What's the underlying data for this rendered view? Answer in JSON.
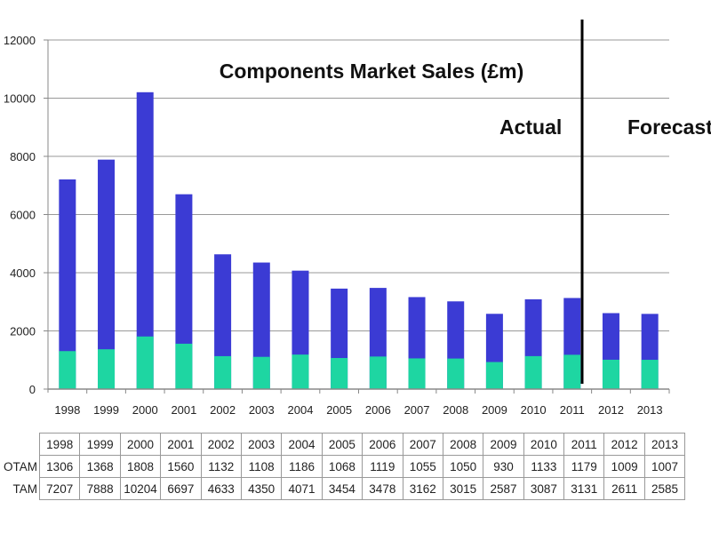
{
  "chart_data": {
    "type": "bar",
    "title": "Components Market Sales (£m)",
    "categories": [
      "1998",
      "1999",
      "2000",
      "2001",
      "2002",
      "2003",
      "2004",
      "2005",
      "2006",
      "2007",
      "2008",
      "2009",
      "2010",
      "2011",
      "2012",
      "2013"
    ],
    "series": [
      {
        "name": "TAM",
        "color": "#3b3bd4",
        "values": [
          7207,
          7888,
          10204,
          6697,
          4633,
          4350,
          4071,
          3454,
          3478,
          3162,
          3015,
          2587,
          3087,
          3131,
          2611,
          2585
        ]
      },
      {
        "name": "OTAM",
        "color": "#1ed6a2",
        "values": [
          1306,
          1368,
          1808,
          1560,
          1132,
          1108,
          1186,
          1068,
          1119,
          1055,
          1050,
          930,
          1133,
          1179,
          1009,
          1007
        ]
      }
    ],
    "ylim": [
      0,
      12000
    ],
    "yticks": [
      "0",
      "2000",
      "4000",
      "6000",
      "8000",
      "10000",
      "12000"
    ],
    "grid": true,
    "annotations": {
      "actual": "Actual",
      "forecast": "Forecast",
      "divider_after": "2011"
    },
    "table_rows": [
      "OTAM",
      "TAM"
    ]
  }
}
